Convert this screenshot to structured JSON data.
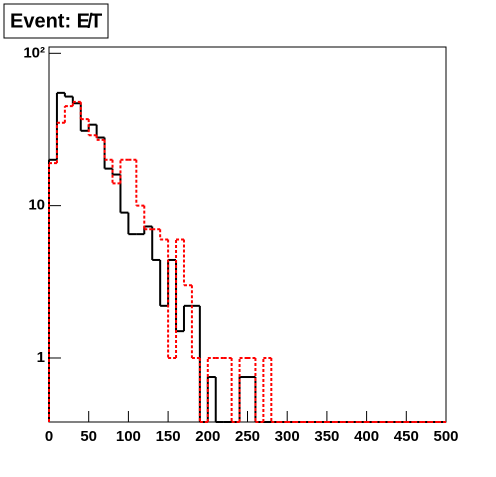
{
  "chart_data": {
    "type": "histogram",
    "title": "Event: E̸T",
    "bins": [
      0,
      10,
      20,
      30,
      40,
      50,
      60,
      70,
      80,
      90,
      100,
      110,
      120,
      130,
      140,
      150,
      160,
      170,
      180,
      190,
      200,
      210,
      220,
      230,
      240,
      250,
      260,
      270,
      280,
      290,
      300,
      310,
      320,
      330,
      340,
      350,
      360,
      370,
      380,
      390,
      400,
      410,
      420,
      430,
      440,
      450,
      460,
      470,
      480,
      490,
      500
    ],
    "series": [
      {
        "color": "#000000",
        "dash": "solid",
        "values": [
          20,
          55,
          52,
          47,
          31,
          34,
          28,
          17.5,
          16,
          9,
          6.5,
          6.5,
          7.3,
          4.4,
          2.2,
          4.4,
          1.5,
          2.2,
          2.2,
          0,
          0.75,
          0,
          0,
          0,
          0.75,
          0.75,
          0,
          0,
          0,
          0,
          0,
          0,
          0,
          0,
          0,
          0,
          0,
          0,
          0,
          0,
          0,
          0,
          0,
          0,
          0,
          0,
          0,
          0,
          0,
          0
        ]
      },
      {
        "color": "#ff0000",
        "dash": "dashed",
        "values": [
          19,
          35,
          45,
          48,
          37,
          29,
          27,
          20,
          14,
          20,
          20,
          10,
          7,
          7,
          6,
          1,
          6,
          3,
          1,
          0,
          1,
          1,
          1,
          0,
          1,
          1,
          0,
          1,
          0,
          0,
          0,
          0,
          0,
          0,
          0,
          0,
          0,
          0,
          0,
          0,
          0,
          0,
          0,
          0,
          0,
          0,
          0,
          0,
          0,
          0
        ]
      }
    ],
    "xlim": [
      0,
      500
    ],
    "xticks": [
      0,
      50,
      100,
      150,
      200,
      250,
      300,
      350,
      400,
      450,
      500
    ],
    "ylim": [
      0.38,
      110
    ],
    "yscale": "log",
    "yticks": [
      1,
      10,
      {
        "value": 100,
        "label": "10²"
      }
    ]
  }
}
